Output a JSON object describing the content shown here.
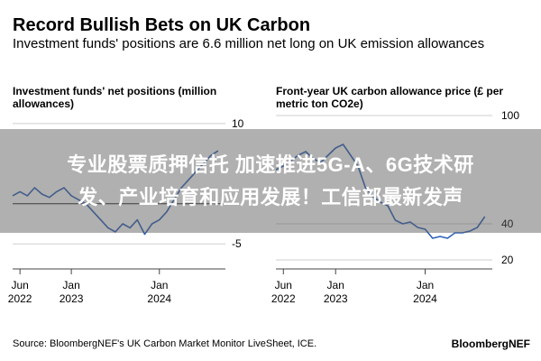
{
  "title": "Record Bullish Bets on UK Carbon",
  "subtitle": "Investment funds' positions are 6.6 million net long on UK emission allowances",
  "overlay_banner": {
    "line1": "专业股票质押信托 加速推进5G-A、6G技术研",
    "line2": "发、产业培育和应用发展！工信部最新发声"
  },
  "source": "Source: BloombergNEF's UK Carbon Market Monitor LiveSheet, ICE.",
  "brand": "BloombergNEF",
  "colors": {
    "line": "#2f62b8",
    "zero_line": "#222222",
    "gridline": "#cfcfcf",
    "axis": "#444444"
  },
  "chart_data": [
    {
      "type": "line",
      "title": "Investment funds' net positions (million allowances)",
      "xlabel": "",
      "ylabel": "",
      "ylim": [
        -7,
        11
      ],
      "yticks": [
        10,
        -5
      ],
      "y_tick_labels": [
        "10",
        "-5"
      ],
      "x_ticks": [
        {
          "month": "Jun",
          "year": "2022",
          "x": "2022-06"
        },
        {
          "month": "Jan",
          "year": "2023",
          "x": "2023-01"
        },
        {
          "month": "Jan",
          "year": "2024",
          "x": "2024-01"
        }
      ],
      "xlim": [
        "2022-05",
        "2024-10"
      ],
      "zero_line": true,
      "grid": "horizontal",
      "series": [
        {
          "x": [
            "2022-05",
            "2022-06",
            "2022-07",
            "2022-08",
            "2022-09",
            "2022-10",
            "2022-11",
            "2022-12",
            "2023-01",
            "2023-02",
            "2023-03",
            "2023-04",
            "2023-05",
            "2023-06",
            "2023-07",
            "2023-08",
            "2023-09",
            "2023-10",
            "2023-11",
            "2023-12",
            "2024-01",
            "2024-02",
            "2024-03",
            "2024-04",
            "2024-05",
            "2024-06",
            "2024-07",
            "2024-08",
            "2024-09"
          ],
          "values": [
            1.0,
            1.5,
            1.0,
            2.0,
            1.2,
            0.8,
            1.5,
            2.0,
            1.0,
            0.5,
            0.0,
            -1.0,
            -2.0,
            -3.0,
            -3.5,
            -2.5,
            -3.0,
            -2.0,
            -3.8,
            -2.5,
            -2.0,
            -1.0,
            0.5,
            2.0,
            3.0,
            4.0,
            5.0,
            6.0,
            6.6
          ]
        }
      ]
    },
    {
      "type": "line",
      "title": "Front-year UK carbon allowance price (£ per metric ton CO2e)",
      "xlabel": "",
      "ylabel": "",
      "ylim": [
        20,
        100
      ],
      "yticks": [
        100,
        40,
        20
      ],
      "y_tick_labels": [
        "100",
        "40",
        "20"
      ],
      "x_ticks": [
        {
          "month": "Jun",
          "year": "2022",
          "x": "2022-06"
        },
        {
          "month": "Jan",
          "year": "2023",
          "x": "2023-01"
        },
        {
          "month": "Jan",
          "year": "2024",
          "x": "2024-01"
        }
      ],
      "xlim": [
        "2022-05",
        "2024-10"
      ],
      "grid": "horizontal",
      "series": [
        {
          "x": [
            "2022-05",
            "2022-06",
            "2022-07",
            "2022-08",
            "2022-09",
            "2022-10",
            "2022-11",
            "2022-12",
            "2023-01",
            "2023-02",
            "2023-03",
            "2023-04",
            "2023-05",
            "2023-06",
            "2023-07",
            "2023-08",
            "2023-09",
            "2023-10",
            "2023-11",
            "2023-12",
            "2024-01",
            "2024-02",
            "2024-03",
            "2024-04",
            "2024-05",
            "2024-06",
            "2024-07",
            "2024-08",
            "2024-09"
          ],
          "values": [
            70,
            72,
            75,
            78,
            80,
            76,
            74,
            78,
            82,
            84,
            78,
            72,
            60,
            55,
            52,
            50,
            42,
            40,
            41,
            38,
            37,
            32,
            33,
            32,
            35,
            35,
            36,
            38,
            44
          ]
        }
      ]
    }
  ]
}
